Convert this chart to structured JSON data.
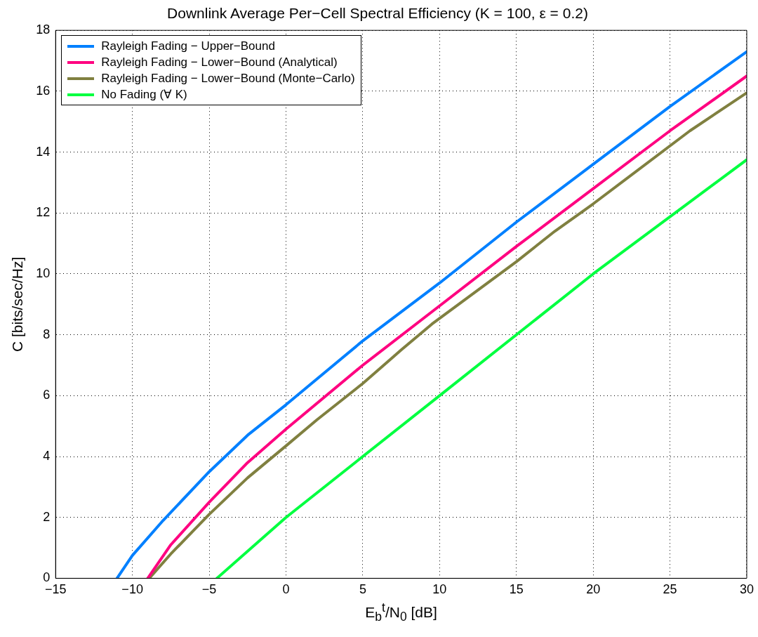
{
  "chart_data": {
    "type": "line",
    "title": "Downlink Average Per−Cell Spectral Efficiency (K = 100, ε = 0.2)",
    "xlabel": "E$_{b}$$^{t}$/N$_{0}$ [dB]",
    "ylabel": "C [bits/sec/Hz]",
    "xlim": [
      -15,
      30
    ],
    "xticks": [
      -15,
      -10,
      -5,
      0,
      5,
      10,
      15,
      20,
      25,
      30
    ],
    "ylim": [
      0,
      18
    ],
    "yticks": [
      0,
      2,
      4,
      6,
      8,
      10,
      12,
      14,
      16,
      18
    ],
    "grid": true,
    "legend": "top left",
    "line_style": "solid",
    "marker": "none",
    "series": [
      {
        "name": "Rayleigh Fading − Upper−Bound",
        "color": "#0080ff",
        "x": [
          -11,
          -10,
          -8,
          -5,
          -2.5,
          0,
          5,
          10,
          15,
          20,
          25,
          30
        ],
        "values": [
          0,
          0.75,
          1.9,
          3.5,
          4.7,
          5.7,
          7.8,
          9.7,
          11.7,
          13.6,
          15.5,
          17.3
        ]
      },
      {
        "name": "Rayleigh Fading − Lower−Bound (Analytical)",
        "color": "#ff0080",
        "x": [
          -9,
          -7.5,
          -5,
          -2.5,
          0,
          5,
          10,
          15,
          20,
          25,
          30
        ],
        "values": [
          0,
          1.1,
          2.5,
          3.8,
          4.9,
          7.0,
          8.95,
          10.9,
          12.8,
          14.7,
          16.5
        ]
      },
      {
        "name": "Rayleigh Fading − Lower−Bound (Monte−Carlo)",
        "color": "#808040",
        "x": [
          -8.9,
          -7.5,
          -5,
          -2.5,
          0,
          2,
          5,
          7.5,
          9.5,
          15,
          17.5,
          20,
          26.3,
          30
        ],
        "values": [
          0,
          0.8,
          2.1,
          3.3,
          4.35,
          5.2,
          6.4,
          7.5,
          8.35,
          10.4,
          11.4,
          12.3,
          14.7,
          15.95
        ]
      },
      {
        "name": "No Fading (∀ K)",
        "color": "#00ff40",
        "x": [
          -4.5,
          0,
          10,
          20,
          30
        ],
        "values": [
          0,
          2,
          6,
          10,
          13.75
        ]
      }
    ]
  }
}
